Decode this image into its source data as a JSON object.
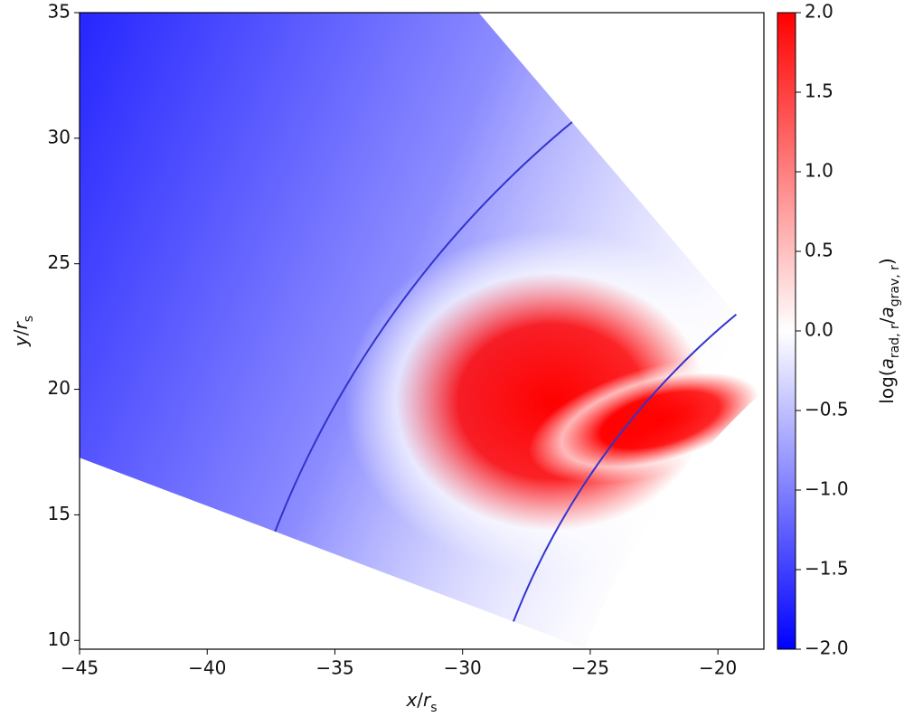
{
  "chart_data": {
    "type": "heatmap",
    "xlabel": [
      {
        "text": "x",
        "italic": true
      },
      {
        "text": "/"
      },
      {
        "text": "r",
        "italic": true
      },
      {
        "text": "s",
        "sub": true
      }
    ],
    "ylabel": [
      {
        "text": "y",
        "italic": true
      },
      {
        "text": "/"
      },
      {
        "text": "r",
        "italic": true
      },
      {
        "text": "s",
        "sub": true
      }
    ],
    "xlim": [
      -45,
      -18.2
    ],
    "ylim": [
      9.65,
      35
    ],
    "xticks": [
      {
        "value": -45,
        "label": "−45"
      },
      {
        "value": -40,
        "label": "−40"
      },
      {
        "value": -35,
        "label": "−35"
      },
      {
        "value": -30,
        "label": "−30"
      },
      {
        "value": -25,
        "label": "−25"
      },
      {
        "value": -20,
        "label": "−20"
      }
    ],
    "yticks": [
      10,
      15,
      20,
      25,
      30,
      35
    ],
    "colorbar": {
      "label": [
        {
          "text": "log("
        },
        {
          "text": "a",
          "italic": true
        },
        {
          "text": "rad, r",
          "sub": true
        },
        {
          "text": "/"
        },
        {
          "text": "a",
          "italic": true
        },
        {
          "text": "grav, r",
          "sub": true
        },
        {
          "text": ")"
        }
      ],
      "clim": [
        -2,
        2
      ],
      "colors": [
        "#0000ff",
        "#ffffff",
        "#ff0000"
      ],
      "ticks": [
        {
          "value": 2,
          "label": "2.0"
        },
        {
          "value": 1.5,
          "label": "1.5"
        },
        {
          "value": 1,
          "label": "1.0"
        },
        {
          "value": 0.5,
          "label": "0.5"
        },
        {
          "value": 0,
          "label": "0.0"
        },
        {
          "value": -0.5,
          "label": "−0.5"
        },
        {
          "value": -1,
          "label": "−1.0"
        },
        {
          "value": -1.5,
          "label": "−1.5"
        },
        {
          "value": -2,
          "label": "−2.0"
        }
      ]
    }
  }
}
